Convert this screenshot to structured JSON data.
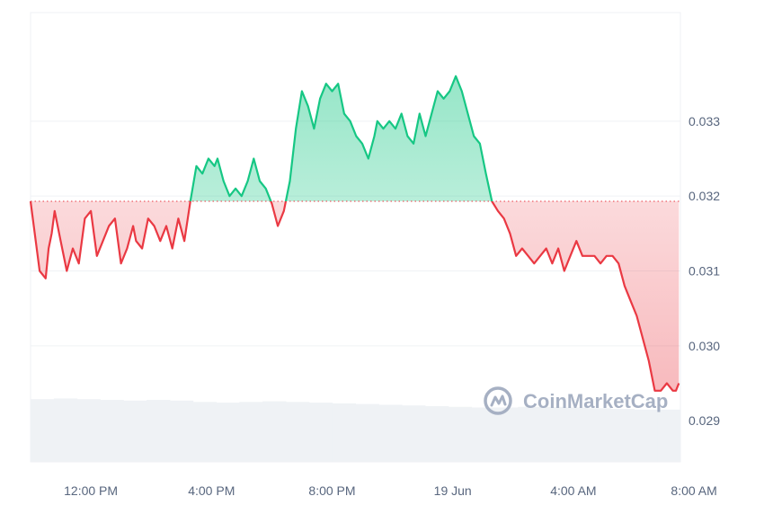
{
  "chart_data": {
    "type": "line",
    "title": "",
    "xlabel": "",
    "ylabel": "",
    "baseline": 0.03193,
    "ylim": [
      0.02845,
      0.03445
    ],
    "xlim": [
      0,
      21.55
    ],
    "yticks": [
      {
        "value": 0.029,
        "label": "0.029"
      },
      {
        "value": 0.03,
        "label": "0.030"
      },
      {
        "value": 0.031,
        "label": "0.031"
      },
      {
        "value": 0.032,
        "label": "0.032"
      },
      {
        "value": 0.033,
        "label": "0.033"
      }
    ],
    "xticks": [
      {
        "value": 2,
        "label": "12:00 PM"
      },
      {
        "value": 6,
        "label": "4:00 PM"
      },
      {
        "value": 10,
        "label": "8:00 PM"
      },
      {
        "value": 14,
        "label": "19 Jun"
      },
      {
        "value": 18,
        "label": "4:00 AM"
      },
      {
        "value": 22,
        "label": "8:00 AM"
      }
    ],
    "colors": {
      "up": "#16c784",
      "down": "#ea3943",
      "grid": "#eff2f5",
      "volume": "#eff2f5",
      "axis_text": "#58667e"
    },
    "series": [
      {
        "x": [
          0.0,
          0.3,
          0.5,
          0.6,
          0.7,
          0.8,
          1.0,
          1.2,
          1.4,
          1.6,
          1.8,
          2.0,
          2.2,
          2.4,
          2.6,
          2.8,
          3.0,
          3.2,
          3.4,
          3.5,
          3.7,
          3.9,
          4.1,
          4.3,
          4.5,
          4.7,
          4.9,
          5.1,
          5.3,
          5.5,
          5.7,
          5.9,
          6.1,
          6.2,
          6.4,
          6.6,
          6.8,
          7.0,
          7.2,
          7.4,
          7.6,
          7.8,
          8.0,
          8.2,
          8.4,
          8.6,
          8.8,
          9.0,
          9.2,
          9.4,
          9.6,
          9.8,
          10.0,
          10.2,
          10.4,
          10.6,
          10.8,
          11.0,
          11.2,
          11.4,
          11.5,
          11.7,
          11.9,
          12.1,
          12.3,
          12.5,
          12.7,
          12.9,
          13.1,
          13.3,
          13.5,
          13.7,
          13.9,
          14.1,
          14.3,
          14.5,
          14.7,
          14.9,
          15.1,
          15.3,
          15.5,
          15.7,
          15.9,
          16.1,
          16.3,
          16.5,
          16.7,
          16.9,
          17.1,
          17.3,
          17.5,
          17.7,
          17.9,
          18.1,
          18.3,
          18.5,
          18.7,
          18.9,
          19.1,
          19.3,
          19.5,
          19.7,
          19.9,
          20.1,
          20.3,
          20.5,
          20.7,
          20.9,
          21.1,
          21.3,
          21.4,
          21.5
        ],
        "y": [
          0.03193,
          0.031,
          0.0309,
          0.0313,
          0.0315,
          0.0318,
          0.0314,
          0.031,
          0.0313,
          0.0311,
          0.0317,
          0.0318,
          0.0312,
          0.0314,
          0.0316,
          0.0317,
          0.0311,
          0.0313,
          0.0316,
          0.0314,
          0.0313,
          0.0317,
          0.0316,
          0.0314,
          0.0316,
          0.0313,
          0.0317,
          0.0314,
          0.03193,
          0.0324,
          0.0323,
          0.0325,
          0.0324,
          0.0325,
          0.0322,
          0.032,
          0.0321,
          0.032,
          0.0322,
          0.0325,
          0.0322,
          0.0321,
          0.0319,
          0.0316,
          0.0318,
          0.0322,
          0.0329,
          0.0334,
          0.0332,
          0.0329,
          0.0333,
          0.0335,
          0.0334,
          0.0335,
          0.0331,
          0.033,
          0.0328,
          0.0327,
          0.0325,
          0.0328,
          0.033,
          0.0329,
          0.033,
          0.0329,
          0.0331,
          0.0328,
          0.0327,
          0.0331,
          0.0328,
          0.0331,
          0.0334,
          0.0333,
          0.0334,
          0.0336,
          0.0334,
          0.0331,
          0.0328,
          0.0327,
          0.0323,
          0.03193,
          0.0318,
          0.0317,
          0.0315,
          0.0312,
          0.0313,
          0.0312,
          0.0311,
          0.0312,
          0.0313,
          0.0311,
          0.0313,
          0.031,
          0.0312,
          0.0314,
          0.0312,
          0.0312,
          0.0312,
          0.0311,
          0.0312,
          0.0312,
          0.0311,
          0.0308,
          0.0306,
          0.0304,
          0.0301,
          0.0298,
          0.0294,
          0.0294,
          0.0295,
          0.0294,
          0.0294,
          0.0295
        ]
      }
    ],
    "volume": [
      0.9,
      0.91,
      0.9,
      0.89,
      0.88,
      0.89,
      0.88,
      0.86,
      0.85,
      0.86,
      0.87,
      0.86,
      0.85,
      0.84,
      0.83,
      0.82,
      0.81,
      0.8,
      0.79,
      0.78,
      0.78,
      0.79,
      0.79,
      0.78,
      0.77,
      0.76,
      0.75,
      0.75
    ],
    "grid": true
  },
  "watermark": {
    "text": "CoinMarketCap",
    "icon": "coinmarketcap-logo-icon"
  }
}
